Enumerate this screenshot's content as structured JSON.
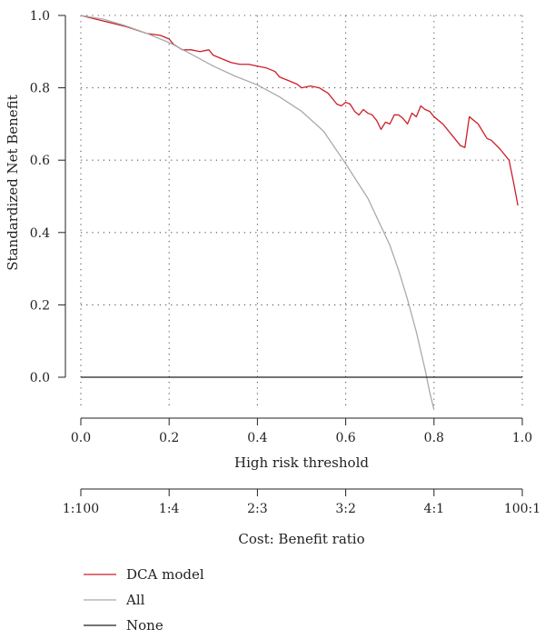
{
  "chart_data": {
    "type": "line",
    "xlabel": "High risk threshold",
    "ylabel": "Standardized Net Benefit",
    "xlim": [
      0,
      1
    ],
    "ylim": [
      -0.09,
      1.0
    ],
    "grid": true,
    "x_ticks": [
      0.0,
      0.2,
      0.4,
      0.6,
      0.8,
      1.0
    ],
    "x_tick_labels": [
      "0.0",
      "0.2",
      "0.4",
      "0.6",
      "0.8",
      "1.0"
    ],
    "y_ticks": [
      0.0,
      0.2,
      0.4,
      0.6,
      0.8,
      1.0
    ],
    "y_tick_labels": [
      "0.0",
      "0.2",
      "0.4",
      "0.6",
      "0.8",
      "1.0"
    ],
    "cost_benefit_axis": {
      "label": "Cost: Benefit ratio",
      "ticks": [
        0.0,
        0.2,
        0.4,
        0.6,
        0.8,
        1.0
      ],
      "tick_labels": [
        "1:100",
        "1:4",
        "2:3",
        "3:2",
        "4:1",
        "100:1"
      ]
    },
    "legend_position": "bottom-left",
    "series": [
      {
        "name": "DCA model",
        "color": "#cc1f27",
        "x": [
          0.0,
          0.05,
          0.1,
          0.15,
          0.18,
          0.2,
          0.21,
          0.23,
          0.25,
          0.27,
          0.29,
          0.3,
          0.32,
          0.34,
          0.36,
          0.38,
          0.4,
          0.42,
          0.44,
          0.45,
          0.47,
          0.49,
          0.5,
          0.52,
          0.54,
          0.56,
          0.58,
          0.59,
          0.6,
          0.61,
          0.62,
          0.63,
          0.64,
          0.65,
          0.66,
          0.67,
          0.68,
          0.69,
          0.7,
          0.71,
          0.72,
          0.73,
          0.74,
          0.75,
          0.76,
          0.77,
          0.78,
          0.79,
          0.8,
          0.82,
          0.84,
          0.86,
          0.87,
          0.88,
          0.9,
          0.92,
          0.93,
          0.95,
          0.97,
          0.98,
          0.99
        ],
        "values": [
          1.0,
          0.985,
          0.97,
          0.95,
          0.945,
          0.935,
          0.92,
          0.905,
          0.905,
          0.9,
          0.905,
          0.89,
          0.88,
          0.87,
          0.865,
          0.865,
          0.86,
          0.855,
          0.845,
          0.83,
          0.82,
          0.81,
          0.8,
          0.805,
          0.8,
          0.785,
          0.755,
          0.75,
          0.76,
          0.755,
          0.735,
          0.725,
          0.74,
          0.73,
          0.725,
          0.71,
          0.685,
          0.705,
          0.7,
          0.725,
          0.725,
          0.715,
          0.7,
          0.73,
          0.72,
          0.75,
          0.74,
          0.735,
          0.72,
          0.7,
          0.67,
          0.64,
          0.635,
          0.72,
          0.7,
          0.66,
          0.655,
          0.63,
          0.6,
          0.54,
          0.475
        ]
      },
      {
        "name": "All",
        "color": "#aaaaaa",
        "x": [
          0.0,
          0.05,
          0.1,
          0.15,
          0.2,
          0.25,
          0.3,
          0.35,
          0.4,
          0.45,
          0.5,
          0.55,
          0.6,
          0.65,
          0.7,
          0.72,
          0.74,
          0.76,
          0.78,
          0.79,
          0.8
        ],
        "values": [
          1.0,
          0.99,
          0.972,
          0.95,
          0.925,
          0.893,
          0.86,
          0.832,
          0.808,
          0.775,
          0.735,
          0.68,
          0.59,
          0.495,
          0.365,
          0.295,
          0.215,
          0.125,
          0.02,
          -0.04,
          -0.09
        ]
      },
      {
        "name": "None",
        "color": "#222222",
        "x": [
          0.0,
          1.0
        ],
        "values": [
          0.0,
          0.0
        ]
      }
    ]
  }
}
